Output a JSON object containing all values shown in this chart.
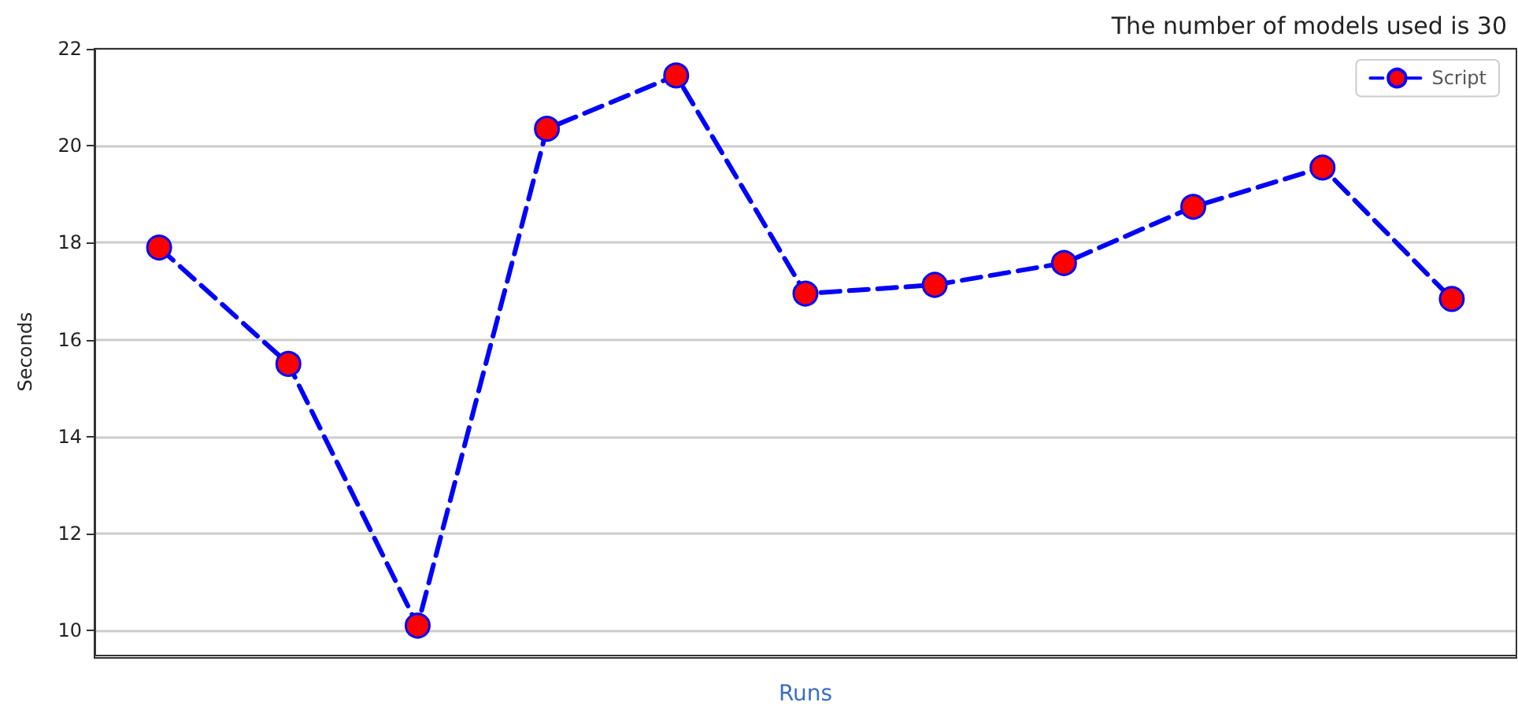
{
  "chart_data": {
    "type": "line",
    "title": "The number of models used is 30",
    "xlabel": "Runs",
    "ylabel": "Seconds",
    "categories": [
      null,
      null,
      null,
      null,
      null,
      null,
      null,
      null,
      null,
      null,
      null
    ],
    "series": [
      {
        "name": "Script",
        "color": "#0000ff",
        "colors": [
          "#ff0000",
          "#ff0000",
          "#ff0000",
          "#ff0000",
          "#ff0000",
          "#ff0000",
          "#ff0000",
          "#ff0000",
          "#ff0000",
          "#ff0000",
          "#ff0000"
        ],
        "values": [
          17.9,
          15.5,
          10.1,
          20.35,
          21.45,
          16.95,
          17.13,
          17.58,
          18.74,
          19.55,
          16.84
        ]
      }
    ],
    "ylim": [
      9.5,
      22
    ],
    "yticks": [
      10,
      12,
      14,
      16,
      18,
      20,
      22
    ],
    "grid": "y",
    "legend": "top right",
    "marker": "circle",
    "line_style": "dashed"
  }
}
